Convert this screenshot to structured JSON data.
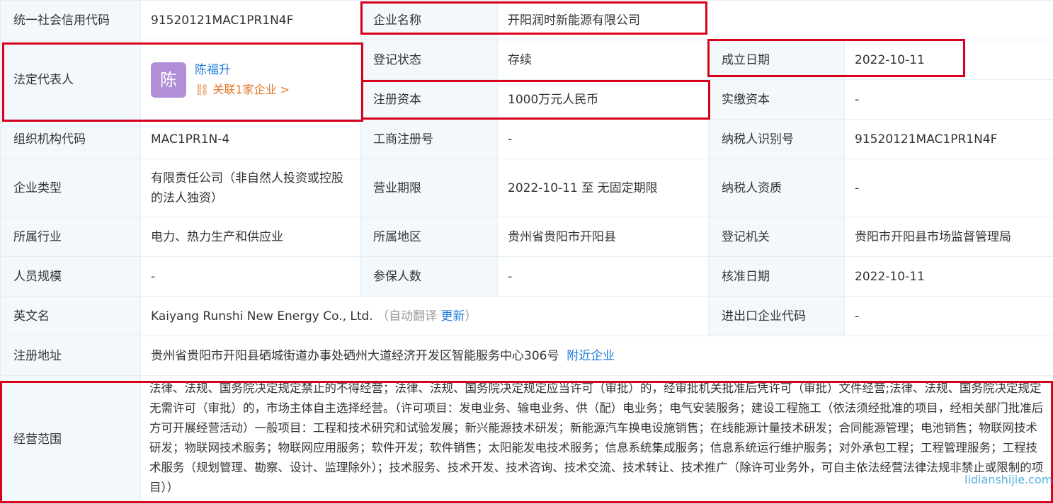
{
  "rows": {
    "credit_code": {
      "label": "统一社会信用代码",
      "value": "91520121MAC1PR1N4F"
    },
    "company_name": {
      "label": "企业名称",
      "value": "开阳润时新能源有限公司"
    },
    "legal_rep": {
      "label": "法定代表人",
      "avatar": "陈",
      "name": "陈福升",
      "related": "关联1家企业 >"
    },
    "reg_status": {
      "label": "登记状态",
      "value": "存续"
    },
    "found_date": {
      "label": "成立日期",
      "value": "2022-10-11"
    },
    "reg_capital": {
      "label": "注册资本",
      "value": "1000万元人民币"
    },
    "paid_capital": {
      "label": "实缴资本",
      "value": "-"
    },
    "org_code": {
      "label": "组织机构代码",
      "value": "MAC1PR1N-4"
    },
    "biz_reg_no": {
      "label": "工商注册号",
      "value": "-"
    },
    "taxpayer_id": {
      "label": "纳税人识别号",
      "value": "91520121MAC1PR1N4F"
    },
    "company_type": {
      "label": "企业类型",
      "value": "有限责任公司（非自然人投资或控股的法人独资）"
    },
    "biz_term": {
      "label": "营业期限",
      "value": "2022-10-11 至 无固定期限"
    },
    "taxpayer_qual": {
      "label": "纳税人资质",
      "value": "-"
    },
    "industry": {
      "label": "所属行业",
      "value": "电力、热力生产和供应业"
    },
    "region": {
      "label": "所属地区",
      "value": "贵州省贵阳市开阳县"
    },
    "reg_authority": {
      "label": "登记机关",
      "value": "贵阳市开阳县市场监督管理局"
    },
    "staff_size": {
      "label": "人员规模",
      "value": "-"
    },
    "insured": {
      "label": "参保人数",
      "value": "-"
    },
    "approval_date": {
      "label": "核准日期",
      "value": "2022-10-11"
    },
    "english_name": {
      "label": "英文名",
      "value": "Kaiyang Runshi New Energy Co., Ltd.",
      "auto": "（自动翻译",
      "update": "更新",
      "close": "）"
    },
    "ie_code": {
      "label": "进出口企业代码",
      "value": "-"
    },
    "address": {
      "label": "注册地址",
      "value": "贵州省贵阳市开阳县硒城街道办事处硒州大道经济开发区智能服务中心306号",
      "nearby": "附近企业"
    },
    "scope": {
      "label": "经营范围",
      "value": "法律、法规、国务院决定规定禁止的不得经营；法律、法规、国务院决定规定应当许可（审批）的，经审批机关批准后凭许可（审批）文件经营;法律、法规、国务院决定规定无需许可（审批）的，市场主体自主选择经营。（许可项目：发电业务、输电业务、供（配）电业务；电气安装服务；建设工程施工（依法须经批准的项目，经相关部门批准后方可开展经营活动）一般项目：工程和技术研究和试验发展；新兴能源技术研发；新能源汽车换电设施销售；在线能源计量技术研发；合同能源管理；电池销售；物联网技术研发；物联网技术服务；物联网应用服务；软件开发；软件销售；太阳能发电技术服务；信息系统集成服务；信息系统运行维护服务；对外承包工程；工程管理服务；工程技术服务（规划管理、勘察、设计、监理除外）；技术服务、技术开发、技术咨询、技术交流、技术转让、技术推广（除许可业务外，可自主依法经营法律法规非禁止或限制的项目））"
    }
  },
  "watermark": "lidianshijie.com",
  "colors": {
    "highlight": "#d9001b",
    "link": "#1f7bd8",
    "related": "#e5782d",
    "label_bg": "#f2f8fc"
  }
}
